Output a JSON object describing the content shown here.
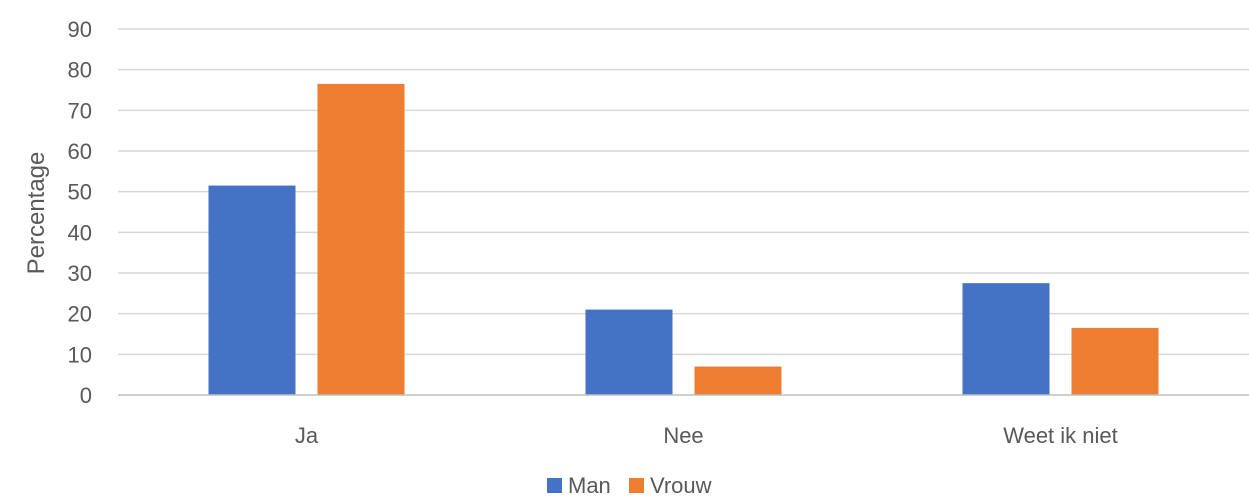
{
  "chart_data": {
    "type": "bar",
    "title": "",
    "xlabel": "",
    "ylabel": "Percentage",
    "categories": [
      "Ja",
      "Nee",
      "Weet ik niet"
    ],
    "series": [
      {
        "name": "Man",
        "values": [
          51.5,
          21,
          27.5
        ],
        "color": "#4472c4"
      },
      {
        "name": "Vrouw",
        "values": [
          76.5,
          7,
          16.5
        ],
        "color": "#ed7d31"
      }
    ],
    "ylim": [
      0,
      90
    ],
    "yticks": [
      0,
      10,
      20,
      30,
      40,
      50,
      60,
      70,
      80,
      90
    ],
    "grid": true,
    "legend": "bottom-center",
    "gridColor": "#d9d9d9"
  }
}
